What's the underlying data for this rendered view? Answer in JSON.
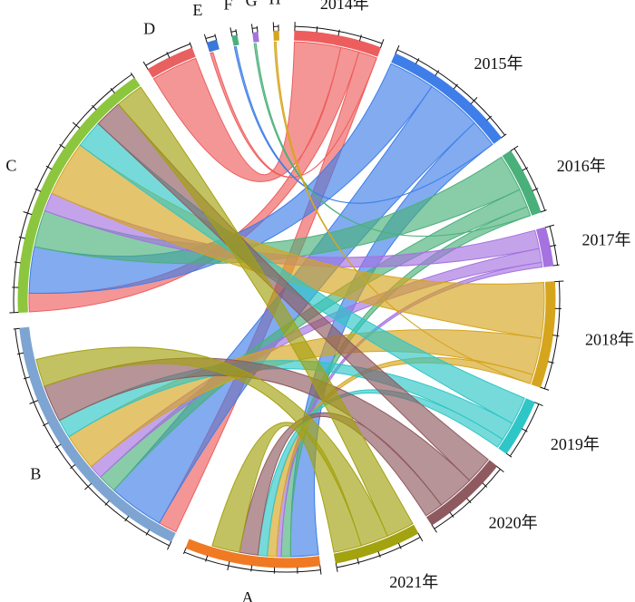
{
  "chart_data": {
    "type": "chord",
    "title": "",
    "segments": [
      {
        "name": "2014年",
        "color": "#ee5d5d",
        "value": 9
      },
      {
        "name": "2015年",
        "color": "#3f7ee8",
        "value": 14
      },
      {
        "name": "2016年",
        "color": "#4ab07a",
        "value": 7
      },
      {
        "name": "2017年",
        "color": "#a572e0",
        "value": 4
      },
      {
        "name": "2018年",
        "color": "#d6a51e",
        "value": 11
      },
      {
        "name": "2019年",
        "color": "#2ec6c6",
        "value": 6
      },
      {
        "name": "2020年",
        "color": "#8f5a5f",
        "value": 9
      },
      {
        "name": "2021年",
        "color": "#a3a20f",
        "value": 9
      },
      {
        "name": "A",
        "color": "#f07a24",
        "value": 14
      },
      {
        "name": "B",
        "color": "#7ea5d1",
        "value": 28
      },
      {
        "name": "C",
        "color": "#8cc63f",
        "value": 28
      },
      {
        "name": "D",
        "color": "#e86060",
        "value": 5
      },
      {
        "name": "E",
        "color": "#3b78d8",
        "value": 1
      },
      {
        "name": "F",
        "color": "#4ab07a",
        "value": 0.5
      },
      {
        "name": "G",
        "color": "#a572e0",
        "value": 0.5
      },
      {
        "name": "H",
        "color": "#d6a51e",
        "value": 0.5
      }
    ],
    "links": [
      {
        "source": "2014年",
        "target": "D",
        "value": 5
      },
      {
        "source": "2014年",
        "target": "C",
        "value": 2
      },
      {
        "source": "2014年",
        "target": "B",
        "value": 2
      },
      {
        "source": "2015年",
        "target": "C",
        "value": 5
      },
      {
        "source": "2015年",
        "target": "B",
        "value": 6
      },
      {
        "source": "2015年",
        "target": "A",
        "value": 3
      },
      {
        "source": "2016年",
        "target": "C",
        "value": 4
      },
      {
        "source": "2016年",
        "target": "B",
        "value": 2
      },
      {
        "source": "2016年",
        "target": "A",
        "value": 1
      },
      {
        "source": "2017年",
        "target": "C",
        "value": 2
      },
      {
        "source": "2017年",
        "target": "B",
        "value": 1.5
      },
      {
        "source": "2017年",
        "target": "A",
        "value": 0.5
      },
      {
        "source": "2018年",
        "target": "C",
        "value": 6
      },
      {
        "source": "2018年",
        "target": "B",
        "value": 4
      },
      {
        "source": "2018年",
        "target": "A",
        "value": 1
      },
      {
        "source": "2019年",
        "target": "C",
        "value": 3
      },
      {
        "source": "2019年",
        "target": "B",
        "value": 2
      },
      {
        "source": "2019年",
        "target": "A",
        "value": 1
      },
      {
        "source": "2020年",
        "target": "C",
        "value": 3
      },
      {
        "source": "2020年",
        "target": "B",
        "value": 4
      },
      {
        "source": "2020年",
        "target": "A",
        "value": 2
      },
      {
        "source": "2021年",
        "target": "C",
        "value": 3
      },
      {
        "source": "2021年",
        "target": "B",
        "value": 3
      },
      {
        "source": "2021年",
        "target": "A",
        "value": 3
      },
      {
        "source": "2014年",
        "target": "E",
        "value": 0.3
      },
      {
        "source": "2015年",
        "target": "F",
        "value": 0.2
      },
      {
        "source": "2016年",
        "target": "G",
        "value": 0.2
      },
      {
        "source": "2018年",
        "target": "H",
        "value": 0.2
      }
    ]
  }
}
